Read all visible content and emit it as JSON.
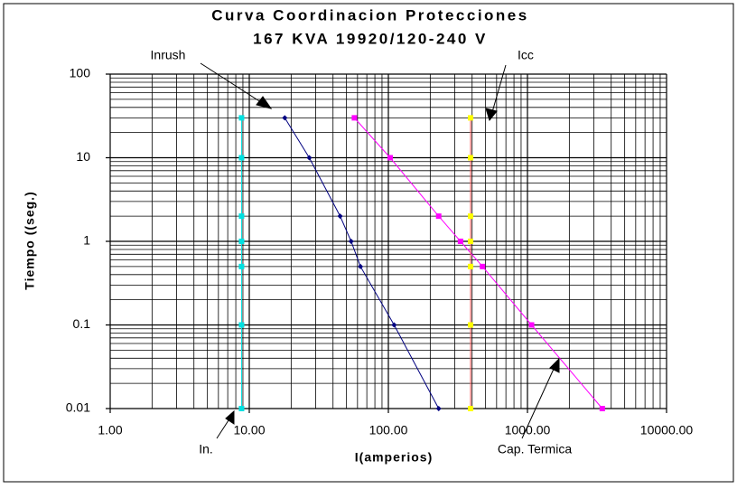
{
  "chart_data": {
    "type": "line",
    "title": [
      "Curva Coordinacion Protecciones",
      "167 KVA 19920/120-240 V"
    ],
    "x_label": "I(amperios)",
    "y_label": "Tiempo ((seg.)",
    "log_x": true,
    "log_y": true,
    "grid": true,
    "minor_grid": true,
    "xlim": [
      1,
      10000
    ],
    "ylim": [
      0.01,
      100
    ],
    "xticks": [
      {
        "value": 1,
        "label": "1.00"
      },
      {
        "value": 10,
        "label": "10.00"
      },
      {
        "value": 100,
        "label": "100.00"
      },
      {
        "value": 1000,
        "label": "1000.00"
      },
      {
        "value": 10000,
        "label": "10000.00"
      }
    ],
    "yticks": [
      100,
      10,
      1,
      0.1,
      0.01
    ],
    "series": [
      {
        "name": "Inrush",
        "color": "#000080",
        "marker": "diamond",
        "x": [
          18,
          27,
          45,
          54,
          63,
          110,
          230
        ],
        "values": [
          30,
          10,
          2,
          1,
          0.5,
          0.1,
          0.01
        ]
      },
      {
        "name": "Cap. Termica",
        "color": "#ff00ff",
        "marker": "square",
        "x": [
          57,
          103,
          230,
          330,
          475,
          1070,
          3450
        ],
        "values": [
          30,
          10,
          2,
          1,
          0.5,
          0.1,
          0.01
        ]
      },
      {
        "name": "In.",
        "color": "#00e0e0",
        "marker": "square",
        "x": [
          8.8,
          8.8,
          8.8,
          8.8,
          8.8,
          8.8,
          8.8
        ],
        "values": [
          30,
          10,
          2,
          1,
          0.5,
          0.1,
          0.01
        ]
      },
      {
        "name": "Icc",
        "color": "#ffff00",
        "line_color": "#ff5050",
        "marker": "square",
        "x": [
          390,
          390,
          390,
          390,
          390,
          390,
          390
        ],
        "values": [
          30,
          10,
          2,
          1,
          0.5,
          0.1,
          0.01
        ]
      }
    ]
  }
}
